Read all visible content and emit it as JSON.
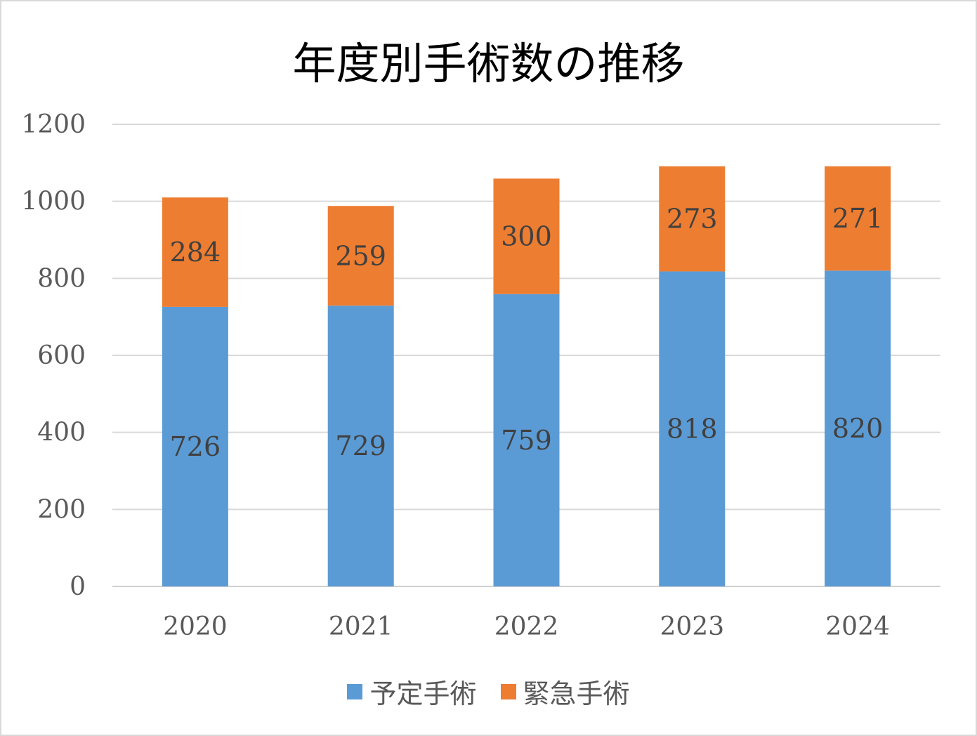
{
  "chart_data": {
    "type": "bar",
    "stacked": true,
    "title": "年度別手術数の推移",
    "categories": [
      "2020",
      "2021",
      "2022",
      "2023",
      "2024"
    ],
    "series": [
      {
        "name": "予定手術",
        "color": "#5b9bd5",
        "values": [
          726,
          729,
          759,
          818,
          820
        ]
      },
      {
        "name": "緊急手術",
        "color": "#ed7d31",
        "values": [
          284,
          259,
          300,
          273,
          271
        ]
      }
    ],
    "ylim": [
      0,
      1200
    ],
    "yticks": [
      "0",
      "200",
      "400",
      "600",
      "800",
      "1000",
      "1200"
    ],
    "grid": true,
    "data_labels": true,
    "legend": "bottom"
  }
}
